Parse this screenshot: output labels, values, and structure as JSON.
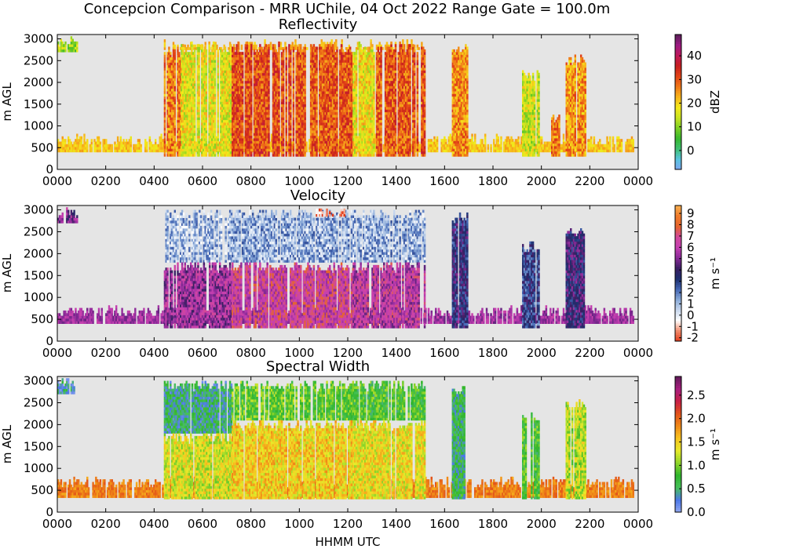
{
  "figure": {
    "title": "Concepcion Comparison - MRR UChile, 04 Oct 2022 Range Gate = 100.0m"
  },
  "chart_data": [
    {
      "type": "heatmap",
      "title": "Reflectivity",
      "xlabel": "",
      "ylabel": "m AGL",
      "x_ticks": [
        "0000",
        "0200",
        "0400",
        "0600",
        "0800",
        "1000",
        "1200",
        "1400",
        "1600",
        "1800",
        "2000",
        "2200",
        "0000"
      ],
      "xlim": [
        0,
        24
      ],
      "y_ticks": [
        0,
        500,
        1000,
        1500,
        2000,
        2500,
        3000
      ],
      "ylim": [
        0,
        3100
      ],
      "colorbar": {
        "label": "dBZ",
        "range": [
          -8,
          49
        ],
        "ticks": [
          "0",
          "10",
          "20",
          "30",
          "40"
        ],
        "tick_values": [
          0,
          10,
          20,
          30,
          40
        ]
      },
      "background_color": "#e5e5e5",
      "colormap": [
        "#7ea6f0",
        "#59c4e0",
        "#3fbf73",
        "#37b82e",
        "#7ccf23",
        "#c9e321",
        "#f4e91b",
        "#f7b51a",
        "#f07818",
        "#e24316",
        "#c71f1f",
        "#c0185a",
        "#9d1a83",
        "#5c1f5a"
      ],
      "events": [
        {
          "t0": 0.0,
          "t1": 0.9,
          "h0": 2700,
          "h1": 3050,
          "v": 12
        },
        {
          "t0": 4.4,
          "t1": 5.1,
          "h0": 300,
          "h1": 2800,
          "v": 27
        },
        {
          "t0": 5.1,
          "t1": 7.2,
          "h0": 300,
          "h1": 2900,
          "v": 17
        },
        {
          "t0": 7.2,
          "t1": 9.6,
          "h0": 300,
          "h1": 2900,
          "v": 31
        },
        {
          "t0": 9.6,
          "t1": 12.2,
          "h0": 300,
          "h1": 2900,
          "v": 30
        },
        {
          "t0": 12.2,
          "t1": 13.1,
          "h0": 300,
          "h1": 2900,
          "v": 18
        },
        {
          "t0": 13.1,
          "t1": 15.2,
          "h0": 300,
          "h1": 2900,
          "v": 30
        },
        {
          "t0": 16.3,
          "t1": 16.9,
          "h0": 300,
          "h1": 2900,
          "v": 26
        },
        {
          "t0": 19.2,
          "t1": 19.9,
          "h0": 300,
          "h1": 2250,
          "v": 15
        },
        {
          "t0": 20.4,
          "t1": 20.7,
          "h0": 300,
          "h1": 1300,
          "v": 27
        },
        {
          "t0": 21.0,
          "t1": 21.8,
          "h0": 300,
          "h1": 2600,
          "v": 25
        }
      ],
      "surface_band": {
        "h0": 400,
        "h1": 520,
        "v": 21
      },
      "top_band": {
        "t0": 4.4,
        "t1": 15.2,
        "h0": 2750,
        "h1": 2950,
        "v": 22
      }
    },
    {
      "type": "heatmap",
      "title": "Velocity",
      "xlabel": "",
      "ylabel": "m AGL",
      "x_ticks": [
        "0000",
        "0200",
        "0400",
        "0600",
        "0800",
        "1000",
        "1200",
        "1400",
        "1600",
        "1800",
        "2000",
        "2200",
        "0000"
      ],
      "xlim": [
        0,
        24
      ],
      "y_ticks": [
        0,
        500,
        1000,
        1500,
        2000,
        2500,
        3000
      ],
      "ylim": [
        0,
        3100
      ],
      "colorbar": {
        "label": "m s⁻¹",
        "range": [
          -2.3,
          9.7
        ],
        "ticks": [
          "-2",
          "-1",
          "0",
          "1",
          "2",
          "3",
          "4",
          "5",
          "6",
          "7",
          "8",
          "9"
        ],
        "tick_values": [
          -2,
          -1,
          0,
          1,
          2,
          3,
          4,
          5,
          6,
          7,
          8,
          9
        ]
      },
      "background_color": "#e5e5e5",
      "colormap": [
        "#e03a1a",
        "#f08a6a",
        "#ffffff",
        "#c9d8ee",
        "#8aaad8",
        "#4466b4",
        "#1d2f6e",
        "#3a1f62",
        "#8a2a98",
        "#c43fb0",
        "#d2489c",
        "#e5642e",
        "#f07a2a",
        "#f8b050"
      ],
      "events": [
        {
          "t0": 0.0,
          "t1": 0.8,
          "h0": 2700,
          "h1": 3050,
          "v": 5.0
        },
        {
          "t0": 4.4,
          "t1": 7.2,
          "h0": 1800,
          "h1": 3000,
          "v": 1.0
        },
        {
          "t0": 4.4,
          "t1": 7.2,
          "h0": 300,
          "h1": 1800,
          "v": 5.5
        },
        {
          "t0": 7.2,
          "t1": 12.2,
          "h0": 1800,
          "h1": 3000,
          "v": 1.2
        },
        {
          "t0": 7.2,
          "t1": 12.2,
          "h0": 300,
          "h1": 1800,
          "v": 6.5
        },
        {
          "t0": 10.5,
          "t1": 12.0,
          "h0": 2850,
          "h1": 3050,
          "v": -1.5
        },
        {
          "t0": 12.2,
          "t1": 15.2,
          "h0": 1800,
          "h1": 3000,
          "v": 1.2
        },
        {
          "t0": 12.2,
          "t1": 15.2,
          "h0": 300,
          "h1": 1800,
          "v": 6.0
        },
        {
          "t0": 16.3,
          "t1": 16.9,
          "h0": 300,
          "h1": 2900,
          "v": 3.5
        },
        {
          "t0": 19.2,
          "t1": 19.9,
          "h0": 300,
          "h1": 2250,
          "v": 3.0
        },
        {
          "t0": 21.0,
          "t1": 21.8,
          "h0": 300,
          "h1": 2600,
          "v": 4.0
        }
      ],
      "surface_band": {
        "h0": 400,
        "h1": 520,
        "v": 5.5
      },
      "top_band": null
    },
    {
      "type": "heatmap",
      "title": "Spectral Width",
      "xlabel": "HHMM UTC",
      "ylabel": "m AGL",
      "x_ticks": [
        "0000",
        "0200",
        "0400",
        "0600",
        "0800",
        "1000",
        "1200",
        "1400",
        "1600",
        "1800",
        "2000",
        "2200",
        "0000"
      ],
      "xlim": [
        0,
        24
      ],
      "y_ticks": [
        0,
        500,
        1000,
        1500,
        2000,
        2500,
        3000
      ],
      "ylim": [
        0,
        3100
      ],
      "colorbar": {
        "label": "m s⁻¹",
        "range": [
          0.0,
          2.9
        ],
        "ticks": [
          "0.0",
          "0.5",
          "1.0",
          "1.5",
          "2.0",
          "2.5"
        ],
        "tick_values": [
          0.0,
          0.5,
          1.0,
          1.5,
          2.0,
          2.5
        ]
      },
      "background_color": "#e5e5e5",
      "colormap": [
        "#93a8ef",
        "#4c78e8",
        "#47c05a",
        "#2fb52c",
        "#8fd52a",
        "#e7ea2a",
        "#f7c41f",
        "#f08a18",
        "#e2521a",
        "#c81f46",
        "#a81e7e",
        "#611b5a"
      ],
      "events": [
        {
          "t0": 0.0,
          "t1": 0.8,
          "h0": 2700,
          "h1": 3050,
          "v": 0.4
        },
        {
          "t0": 4.4,
          "t1": 7.2,
          "h0": 1800,
          "h1": 3000,
          "v": 0.5
        },
        {
          "t0": 4.4,
          "t1": 7.2,
          "h0": 300,
          "h1": 1800,
          "v": 1.3
        },
        {
          "t0": 7.2,
          "t1": 12.2,
          "h0": 2100,
          "h1": 3000,
          "v": 0.9
        },
        {
          "t0": 7.2,
          "t1": 12.2,
          "h0": 300,
          "h1": 2100,
          "v": 1.5
        },
        {
          "t0": 12.2,
          "t1": 15.2,
          "h0": 2100,
          "h1": 3000,
          "v": 0.8
        },
        {
          "t0": 12.2,
          "t1": 15.2,
          "h0": 300,
          "h1": 2100,
          "v": 1.4
        },
        {
          "t0": 16.3,
          "t1": 16.9,
          "h0": 300,
          "h1": 2900,
          "v": 0.6
        },
        {
          "t0": 19.2,
          "t1": 19.9,
          "h0": 300,
          "h1": 2250,
          "v": 0.8
        },
        {
          "t0": 21.0,
          "t1": 21.8,
          "h0": 300,
          "h1": 2600,
          "v": 1.2
        }
      ],
      "surface_band": {
        "h0": 330,
        "h1": 520,
        "v": 1.9
      },
      "top_band": null
    }
  ]
}
